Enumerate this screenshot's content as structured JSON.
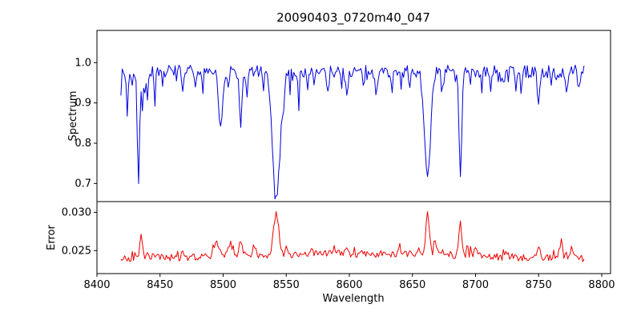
{
  "chart_data": {
    "type": "line",
    "title": "20090403_0720m40_047",
    "xlabel": "Wavelength",
    "xlim": [
      8400,
      8807
    ],
    "x_range": [
      8419,
      8786
    ],
    "x_ticks": {
      "values": [
        8400,
        8450,
        8500,
        8550,
        8600,
        8650,
        8700,
        8750,
        8800
      ],
      "labels": [
        "8400",
        "8450",
        "8500",
        "8550",
        "8600",
        "8650",
        "8700",
        "8750",
        "8800"
      ]
    },
    "panels": [
      {
        "name": "spectrum",
        "ylabel": "Spectrum",
        "color": "#0000dd",
        "ylim": [
          0.655,
          1.08
        ],
        "y_ticks": {
          "values": [
            0.7,
            0.8,
            0.9,
            1.0
          ],
          "labels": [
            "0.7",
            "0.8",
            "0.9",
            "1.0"
          ]
        },
        "baseline": 0.978,
        "noise": 0.016,
        "spike": {
          "prob": 0.13,
          "max": -0.045
        },
        "features": [
          {
            "wavelength": 8424,
            "delta": -0.1,
            "width": 1.0
          },
          {
            "wavelength": 8428,
            "delta": -0.05,
            "width": 1.0
          },
          {
            "wavelength": 8433,
            "delta": -0.28,
            "width": 1.2
          },
          {
            "wavelength": 8436,
            "delta": -0.1,
            "width": 1.0
          },
          {
            "wavelength": 8440,
            "delta": -0.07,
            "width": 1.0
          },
          {
            "wavelength": 8446,
            "delta": -0.05,
            "width": 1.0
          },
          {
            "wavelength": 8452,
            "delta": -0.04,
            "width": 1.0
          },
          {
            "wavelength": 8468,
            "delta": -0.06,
            "width": 1.3
          },
          {
            "wavelength": 8478,
            "delta": -0.05,
            "width": 1.0
          },
          {
            "wavelength": 8498,
            "delta": -0.135,
            "width": 2.3
          },
          {
            "wavelength": 8504,
            "delta": -0.05,
            "width": 1.0
          },
          {
            "wavelength": 8514,
            "delta": -0.125,
            "width": 1.6
          },
          {
            "wavelength": 8519,
            "delta": -0.06,
            "width": 1.0
          },
          {
            "wavelength": 8532,
            "delta": -0.04,
            "width": 1.0
          },
          {
            "wavelength": 8542,
            "delta": -0.32,
            "width": 4.2
          },
          {
            "wavelength": 8548,
            "delta": -0.05,
            "width": 1.2
          },
          {
            "wavelength": 8560,
            "delta": -0.04,
            "width": 1.0
          },
          {
            "wavelength": 8572,
            "delta": -0.04,
            "width": 1.0
          },
          {
            "wavelength": 8583,
            "delta": -0.05,
            "width": 1.0
          },
          {
            "wavelength": 8598,
            "delta": -0.06,
            "width": 1.3
          },
          {
            "wavelength": 8611,
            "delta": -0.04,
            "width": 1.0
          },
          {
            "wavelength": 8621,
            "delta": -0.05,
            "width": 1.2
          },
          {
            "wavelength": 8634,
            "delta": -0.04,
            "width": 1.0
          },
          {
            "wavelength": 8648,
            "delta": -0.05,
            "width": 1.0
          },
          {
            "wavelength": 8662,
            "delta": -0.27,
            "width": 3.4
          },
          {
            "wavelength": 8674,
            "delta": -0.05,
            "width": 1.2
          },
          {
            "wavelength": 8688,
            "delta": -0.26,
            "width": 1.4
          },
          {
            "wavelength": 8705,
            "delta": -0.04,
            "width": 1.0
          },
          {
            "wavelength": 8712,
            "delta": -0.05,
            "width": 1.0
          },
          {
            "wavelength": 8720,
            "delta": -0.04,
            "width": 1.0
          },
          {
            "wavelength": 8736,
            "delta": -0.05,
            "width": 1.0
          },
          {
            "wavelength": 8750,
            "delta": -0.08,
            "width": 1.5
          },
          {
            "wavelength": 8760,
            "delta": -0.04,
            "width": 1.0
          },
          {
            "wavelength": 8772,
            "delta": -0.05,
            "width": 1.2
          },
          {
            "wavelength": 8782,
            "delta": -0.05,
            "width": 1.0
          }
        ]
      },
      {
        "name": "error",
        "ylabel": "Error",
        "color": "#ee0000",
        "ylim": [
          0.022,
          0.0314
        ],
        "y_ticks": {
          "values": [
            0.025,
            0.03
          ],
          "labels": [
            "0.025",
            "0.030"
          ]
        },
        "baseline": 0.0237,
        "noise": 0.0005,
        "spike": {
          "prob": 0.15,
          "max": 0.0012
        },
        "hump": {
          "center": 8600,
          "amplitude": 0.0009,
          "width": 160
        },
        "features": [
          {
            "wavelength": 8435,
            "delta": 0.003,
            "width": 1.6
          },
          {
            "wavelength": 8445,
            "delta": 0.0008,
            "width": 1.2
          },
          {
            "wavelength": 8468,
            "delta": 0.0008,
            "width": 1.5
          },
          {
            "wavelength": 8495,
            "delta": 0.0017,
            "width": 2.5
          },
          {
            "wavelength": 8505,
            "delta": 0.0012,
            "width": 2.0
          },
          {
            "wavelength": 8514,
            "delta": 0.0017,
            "width": 2.0
          },
          {
            "wavelength": 8525,
            "delta": 0.0008,
            "width": 1.5
          },
          {
            "wavelength": 8542,
            "delta": 0.0054,
            "width": 2.4
          },
          {
            "wavelength": 8550,
            "delta": 0.001,
            "width": 1.5
          },
          {
            "wavelength": 8570,
            "delta": 0.0006,
            "width": 1.5
          },
          {
            "wavelength": 8598,
            "delta": 0.0008,
            "width": 1.5
          },
          {
            "wavelength": 8640,
            "delta": 0.0007,
            "width": 1.5
          },
          {
            "wavelength": 8655,
            "delta": 0.001,
            "width": 1.5
          },
          {
            "wavelength": 8662,
            "delta": 0.006,
            "width": 1.8
          },
          {
            "wavelength": 8668,
            "delta": 0.0018,
            "width": 1.5
          },
          {
            "wavelength": 8688,
            "delta": 0.0046,
            "width": 1.5
          },
          {
            "wavelength": 8700,
            "delta": 0.0008,
            "width": 1.5
          },
          {
            "wavelength": 8725,
            "delta": 0.0007,
            "width": 1.5
          },
          {
            "wavelength": 8750,
            "delta": 0.0012,
            "width": 1.5
          },
          {
            "wavelength": 8768,
            "delta": 0.0026,
            "width": 1.5
          },
          {
            "wavelength": 8776,
            "delta": 0.0014,
            "width": 1.2
          }
        ]
      }
    ]
  }
}
